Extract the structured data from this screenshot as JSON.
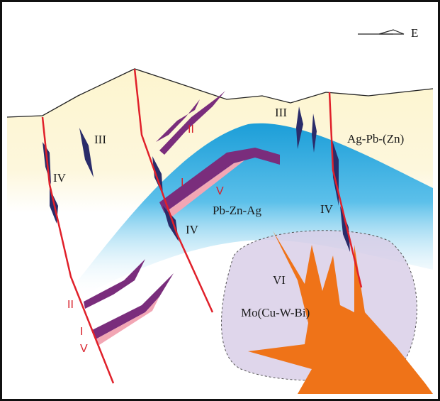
{
  "labels": [
    "E",
    "III",
    "IV",
    "II",
    "I",
    "V",
    "Pb-Zn-Ag",
    "IV",
    "III",
    "Ag-Pb-(Zn)",
    "IV",
    "VI",
    "Mo(Cu-W-Bi)",
    "II",
    "I",
    "V"
  ]
}
